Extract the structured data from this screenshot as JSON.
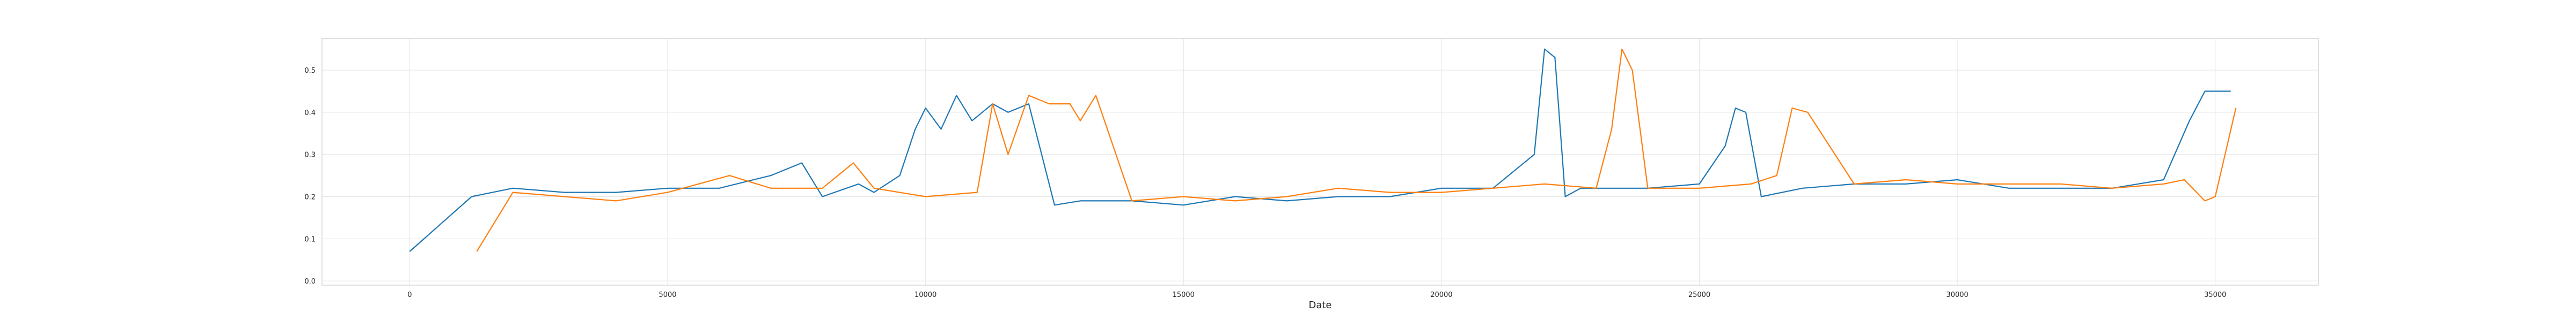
{
  "chart_data": {
    "type": "line",
    "title": "",
    "xlabel": "Date",
    "ylabel": "",
    "xlim": [
      -1700,
      37000
    ],
    "ylim": [
      -0.01,
      0.575
    ],
    "grid": true,
    "legend": "none",
    "x_ticks": [
      0,
      5000,
      10000,
      15000,
      20000,
      25000,
      30000,
      35000
    ],
    "x_tick_labels": [
      "0",
      "5000",
      "10000",
      "15000",
      "20000",
      "25000",
      "30000",
      "35000"
    ],
    "y_ticks": [
      0.0,
      0.1,
      0.2,
      0.3,
      0.4,
      0.5
    ],
    "y_tick_labels": [
      "0.0",
      "0.1",
      "0.2",
      "0.3",
      "0.4",
      "0.5"
    ],
    "series": [
      {
        "color": "#1f77b4",
        "x": [
          0,
          1200,
          2000,
          3000,
          4000,
          5000,
          6000,
          7000,
          7600,
          8000,
          8700,
          9000,
          9500,
          9800,
          10000,
          10300,
          10600,
          10900,
          11300,
          11600,
          12000,
          12500,
          13000,
          14000,
          15000,
          16000,
          17000,
          18000,
          19000,
          20000,
          21000,
          21800,
          22000,
          22200,
          22400,
          22700,
          23000,
          24000,
          25000,
          25500,
          25700,
          25900,
          26200,
          27000,
          28000,
          29000,
          30000,
          31000,
          32000,
          33000,
          33500,
          34000,
          34500,
          34800,
          35000,
          35300
        ],
        "y": [
          0.07,
          0.2,
          0.22,
          0.21,
          0.21,
          0.22,
          0.22,
          0.25,
          0.28,
          0.2,
          0.23,
          0.21,
          0.25,
          0.36,
          0.41,
          0.36,
          0.44,
          0.38,
          0.42,
          0.4,
          0.42,
          0.18,
          0.19,
          0.19,
          0.18,
          0.2,
          0.19,
          0.2,
          0.2,
          0.22,
          0.22,
          0.3,
          0.55,
          0.53,
          0.2,
          0.22,
          0.22,
          0.22,
          0.23,
          0.32,
          0.41,
          0.4,
          0.2,
          0.22,
          0.23,
          0.23,
          0.24,
          0.22,
          0.22,
          0.22,
          0.23,
          0.24,
          0.38,
          0.45,
          0.45,
          0.45
        ]
      },
      {
        "color": "#ff7f0e",
        "x": [
          1300,
          2000,
          3000,
          4000,
          5000,
          6200,
          7000,
          8000,
          8600,
          9000,
          10000,
          11000,
          11300,
          11600,
          12000,
          12400,
          12800,
          13000,
          13300,
          14000,
          15000,
          16000,
          17000,
          18000,
          19000,
          20000,
          21000,
          22000,
          23000,
          23300,
          23500,
          23700,
          24000,
          25000,
          26000,
          26500,
          26800,
          27100,
          28000,
          29000,
          30000,
          31000,
          32000,
          33000,
          34000,
          34400,
          34800,
          35000,
          35400
        ],
        "y": [
          0.07,
          0.21,
          0.2,
          0.19,
          0.21,
          0.25,
          0.22,
          0.22,
          0.28,
          0.22,
          0.2,
          0.21,
          0.42,
          0.3,
          0.44,
          0.42,
          0.42,
          0.38,
          0.44,
          0.19,
          0.2,
          0.19,
          0.2,
          0.22,
          0.21,
          0.21,
          0.22,
          0.23,
          0.22,
          0.36,
          0.55,
          0.5,
          0.22,
          0.22,
          0.23,
          0.25,
          0.41,
          0.4,
          0.23,
          0.24,
          0.23,
          0.23,
          0.23,
          0.22,
          0.23,
          0.24,
          0.19,
          0.2,
          0.41
        ]
      }
    ]
  }
}
